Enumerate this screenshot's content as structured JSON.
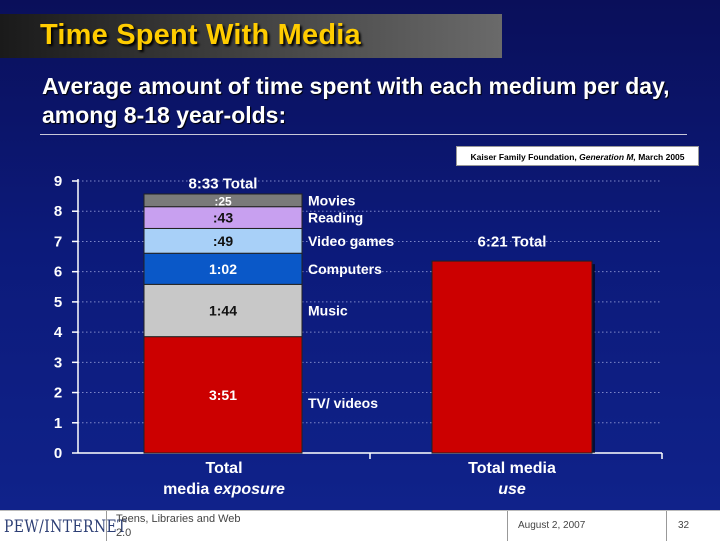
{
  "header": {
    "title": "Time Spent With Media",
    "subtitle": "Average amount of time spent with each medium per day, among 8-18 year-olds:"
  },
  "source": {
    "prefix": "Kaiser Family Foundation,",
    "publication": "Generation M,",
    "date": "March 2005"
  },
  "colors": {
    "title": "#ffcc00",
    "tv": "#cc0000",
    "music": "#c8c8c8",
    "computers": "#0a58c8",
    "video_games": "#a8d0f8",
    "reading": "#c8a0f0",
    "movies": "#7a7a7a",
    "total_use": "#cc0000"
  },
  "chart_data": {
    "type": "bar",
    "stacked": true,
    "ylim": [
      0,
      9
    ],
    "yticks": [
      "0",
      "1",
      "2",
      "3",
      "4",
      "5",
      "6",
      "7",
      "8",
      "9"
    ],
    "grid": true,
    "categories": [
      {
        "line1": "Total",
        "line2": "media",
        "line2_em": "exposure"
      },
      {
        "line1": "Total media",
        "line2": "",
        "line2_em": "use"
      }
    ],
    "series": [
      {
        "name": "TV/ videos",
        "label": "3:51",
        "value": 3.85,
        "color": "#cc0000"
      },
      {
        "name": "Music",
        "label": "1:44",
        "value": 1.73,
        "color": "#c8c8c8"
      },
      {
        "name": "Computers",
        "label": "1:02",
        "value": 1.03,
        "color": "#0a58c8"
      },
      {
        "name": "Video games",
        "label": ":49",
        "value": 0.82,
        "color": "#a8d0f8"
      },
      {
        "name": "Reading",
        "label": ":43",
        "value": 0.72,
        "color": "#c8a0f0"
      },
      {
        "name": "Movies",
        "label": ":25",
        "value": 0.42,
        "color": "#7a7a7a"
      }
    ],
    "total_exposure": {
      "label": "8:33 Total",
      "value": 8.55
    },
    "total_use": {
      "label": "6:21 Total",
      "value": 6.35,
      "color": "#cc0000"
    }
  },
  "footer": {
    "logo": "PEW/INTERNET",
    "text": "Teens, Libraries and Web 2.0",
    "date": "August 2, 2007",
    "page": "32"
  }
}
